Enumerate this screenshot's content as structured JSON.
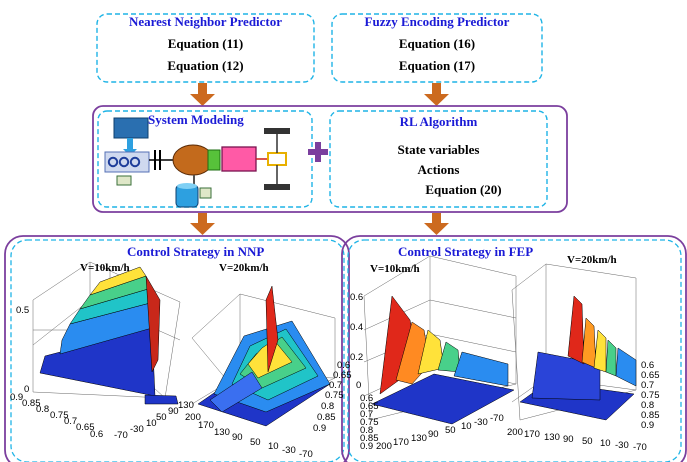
{
  "predictors": {
    "nnp": {
      "title": "Nearest Neighbor Predictor",
      "eq1": "Equation (11)",
      "eq2": "Equation (12)"
    },
    "fep": {
      "title": "Fuzzy Encoding Predictor",
      "eq1": "Equation (16)",
      "eq2": "Equation (17)"
    }
  },
  "system_modeling": {
    "title": "System Modeling"
  },
  "rl": {
    "title": "RL Algorithm",
    "line1": "State variables",
    "line2": "Actions",
    "line3": "Equation (20)"
  },
  "nnp_panel": {
    "title": "Control Strategy in NNP",
    "left": {
      "speed": "V=10km/h",
      "z_ticks": [
        "0.5",
        "0"
      ],
      "y_ticks": [
        "0.9",
        "0.85",
        "0.8",
        "0.75",
        "0.7",
        "0.65",
        "0.6"
      ],
      "x_ticks": [
        "-70",
        "-30",
        "10",
        "50",
        "90",
        "130"
      ]
    },
    "right": {
      "speed": "V=20km/h",
      "x_ticks": [
        "200",
        "170",
        "130",
        "90",
        "50",
        "10",
        "-30",
        "-70"
      ],
      "y_ticks": [
        "0.6",
        "0.65",
        "0.7",
        "0.75",
        "0.8",
        "0.85",
        "0.9"
      ]
    }
  },
  "fep_panel": {
    "title": "Control Strategy in FEP",
    "left": {
      "speed": "V=10km/h",
      "z_ticks": [
        "0.6",
        "0.4",
        "0.2",
        "0"
      ],
      "y_ticks": [
        "0.6",
        "0.65",
        "0.7",
        "0.75",
        "0.8",
        "0.85",
        "0.9"
      ],
      "x_ticks": [
        "200",
        "170",
        "130",
        "90",
        "50",
        "10",
        "-30",
        "-70"
      ]
    },
    "right": {
      "speed": "V=20km/h",
      "y_ticks": [
        "0.6",
        "0.65",
        "0.7",
        "0.75",
        "0.8",
        "0.85",
        "0.9"
      ],
      "x_ticks": [
        "200",
        "170",
        "130",
        "90",
        "50",
        "10",
        "-30",
        "-70"
      ]
    }
  },
  "colors": {
    "dashed_cyan": "#1fb4e6",
    "purple": "#7b3f9e",
    "arrow_orange": "#cc6a1f",
    "title_blue": "#1a1ad6"
  }
}
